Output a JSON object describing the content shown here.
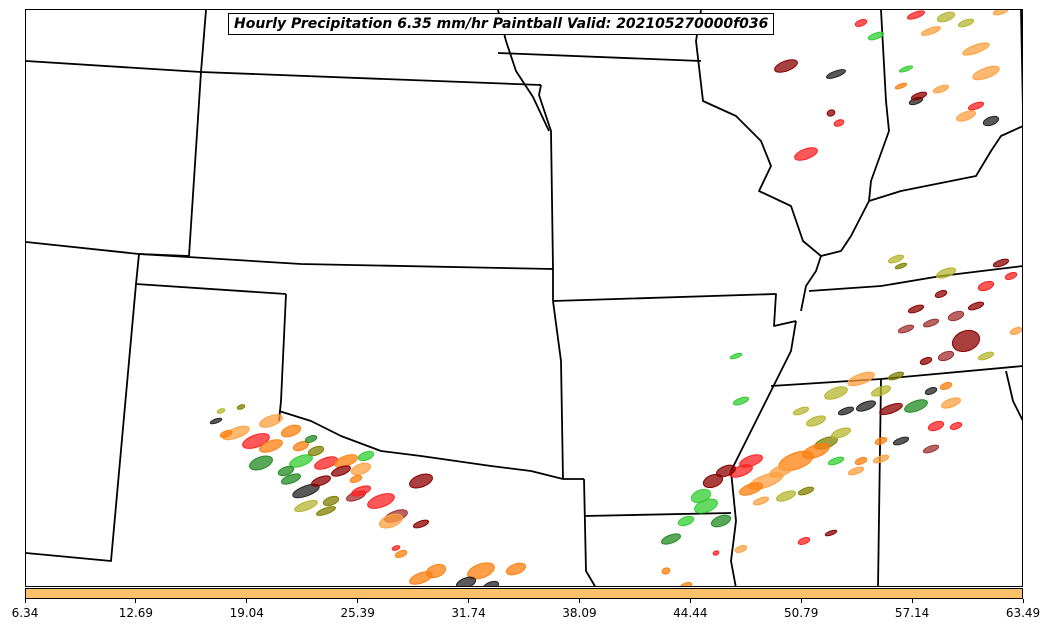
{
  "title": "Hourly Precipitation 6.35 mm/hr Paintball Valid: 202105270000f036",
  "colorbar": {
    "color": "#fdc16c",
    "ticks": [
      "6.34",
      "12.69",
      "19.04",
      "25.39",
      "31.74",
      "38.09",
      "44.44",
      "50.79",
      "57.14",
      "63.49"
    ]
  },
  "member_colors": [
    "#8b0000",
    "#ff2020",
    "#ff7f0e",
    "#ffa040",
    "#228b22",
    "#32cd32",
    "#808000",
    "#b5b530",
    "#222222",
    "#a03030"
  ]
}
